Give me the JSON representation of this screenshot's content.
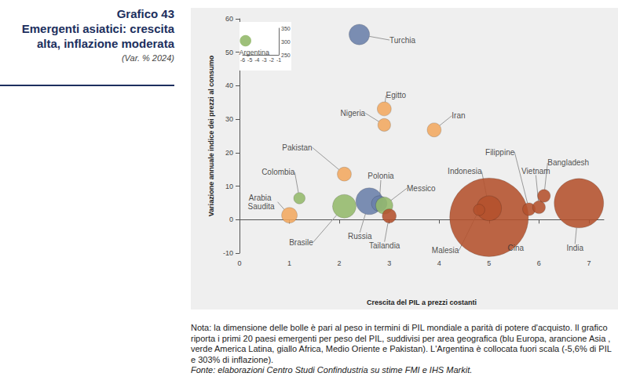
{
  "chart_data": {
    "type": "scatter",
    "title": "Grafico 43",
    "subtitle": "Emergenti asiatici: crescita alta, inflazione moderata",
    "annotations": [
      "(Var. % 2024)",
      "Nota: la dimensione delle bolle è pari al peso in termini di PIL mondiale a parità di potere d'acquisto. Il grafico riporta i primi 20 paesi emergenti per peso del PIL, suddivisi per area geografica (blu Europa, arancione Asia , verde America Latina, giallo Africa, Medio Oriente e Pakistan). L'Argentina è collocata fuori scala (-5,6% di PIL e 303% di inflazione).",
      "Fonte: elaborazioni Centro Studi Confindustria su stime FMI e IHS Markit."
    ],
    "x_label": "Crescita del PIL a prezzi costanti",
    "y_label": "Variazione annuale indice dei prezzi al consumo",
    "labels": [
      "Cina",
      "India",
      "Turchia",
      "Egitto",
      "Nigeria",
      "Iran",
      "Pakistan",
      "Colombia",
      "Arabia Saudita",
      "Brasile",
      "Russia",
      "Polonia",
      "Messico",
      "Tailandia",
      "Indonesia",
      "Malesia",
      "Filippine",
      "Vietnam",
      "Bangladesh"
    ],
    "x": [
      5.0,
      6.8,
      2.4,
      2.9,
      2.9,
      3.9,
      2.1,
      1.2,
      1.0,
      2.1,
      2.6,
      2.8,
      2.9,
      3.0,
      5.0,
      4.8,
      5.8,
      6.0,
      6.1
    ],
    "y": [
      0.7,
      4.9,
      55.3,
      33.1,
      28.3,
      26.8,
      13.6,
      6.4,
      1.3,
      4.0,
      5.5,
      4.8,
      4.2,
      1.1,
      3.4,
      2.9,
      3.1,
      3.7,
      7.1
    ],
    "sizes": [
      19.0,
      7.5,
      1.3,
      0.6,
      0.5,
      0.6,
      0.6,
      0.4,
      0.75,
      1.7,
      2.2,
      0.75,
      0.9,
      0.6,
      1.9,
      0.4,
      0.5,
      0.5,
      0.5
    ],
    "colors": [
      "#b4512c",
      "#b4512c",
      "#6a80aa",
      "#f2a960",
      "#f2a960",
      "#f2a960",
      "#f2a960",
      "#94b96b",
      "#f2a960",
      "#94b96b",
      "#6a80aa",
      "#6a80aa",
      "#94b96b",
      "#b4512c",
      "#b4512c",
      "#b4512c",
      "#b4512c",
      "#b4512c",
      "#b4512c"
    ],
    "xlim": [
      0,
      7.3
    ],
    "xticks": [
      0,
      1,
      2,
      3,
      4,
      5,
      6,
      7
    ],
    "ylim": [
      -10,
      60
    ],
    "yticks": [
      -10,
      0,
      10,
      20,
      30,
      40,
      50,
      60
    ],
    "grid": false,
    "inset": {
      "labels": [
        "Argentina"
      ],
      "x": [
        -5.6
      ],
      "y": [
        303
      ],
      "sizes": [
        0.4
      ],
      "colors": [
        "#94b96b"
      ],
      "xlim": [
        -6,
        -1
      ],
      "xticks": [
        -6,
        -5,
        -4,
        -3,
        -2,
        -1
      ],
      "ylim": [
        250,
        350
      ],
      "yticks": [
        250,
        300,
        350
      ]
    }
  }
}
